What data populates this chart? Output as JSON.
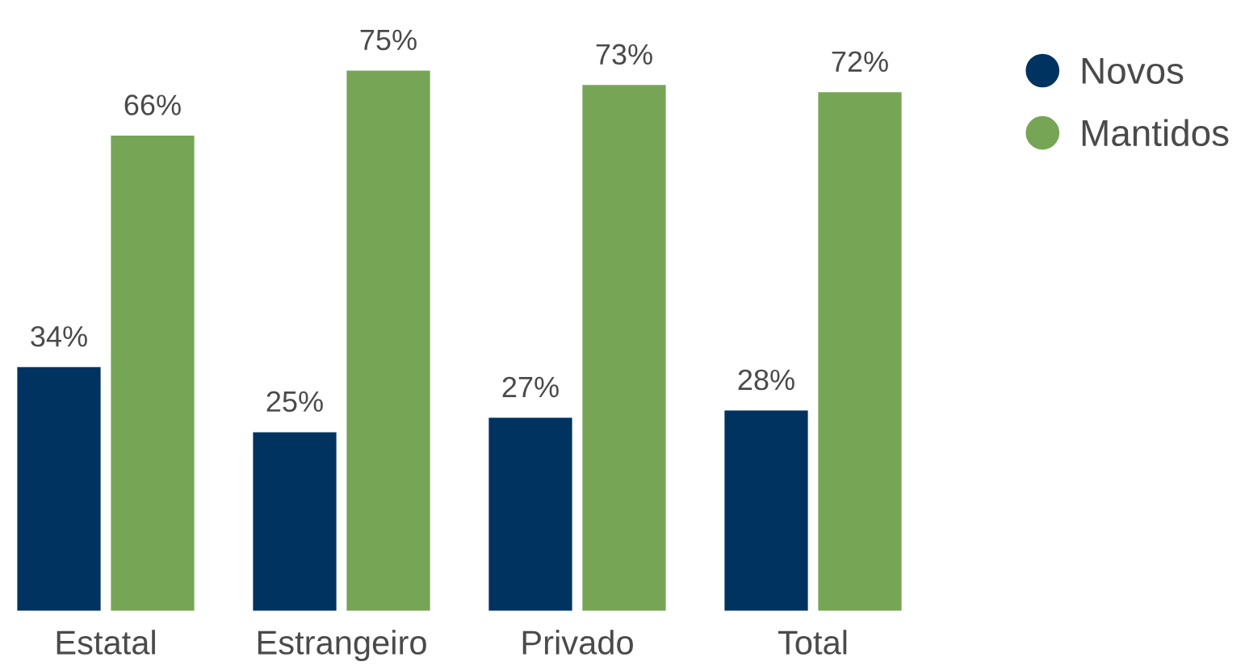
{
  "chart_data": {
    "type": "bar",
    "categories": [
      "Estatal",
      "Estrangeiro",
      "Privado",
      "Total"
    ],
    "series": [
      {
        "name": "Novos",
        "color": "#003360",
        "values": [
          34,
          25,
          27,
          28
        ],
        "value_labels": [
          "34%",
          "25%",
          "27%",
          "28%"
        ]
      },
      {
        "name": "Mantidos",
        "color": "#76a556",
        "values": [
          66,
          75,
          73,
          72
        ],
        "value_labels": [
          "66%",
          "75%",
          "73%",
          "72%"
        ]
      }
    ],
    "legend": "top right",
    "tick_labels": "x",
    "grid": false
  }
}
